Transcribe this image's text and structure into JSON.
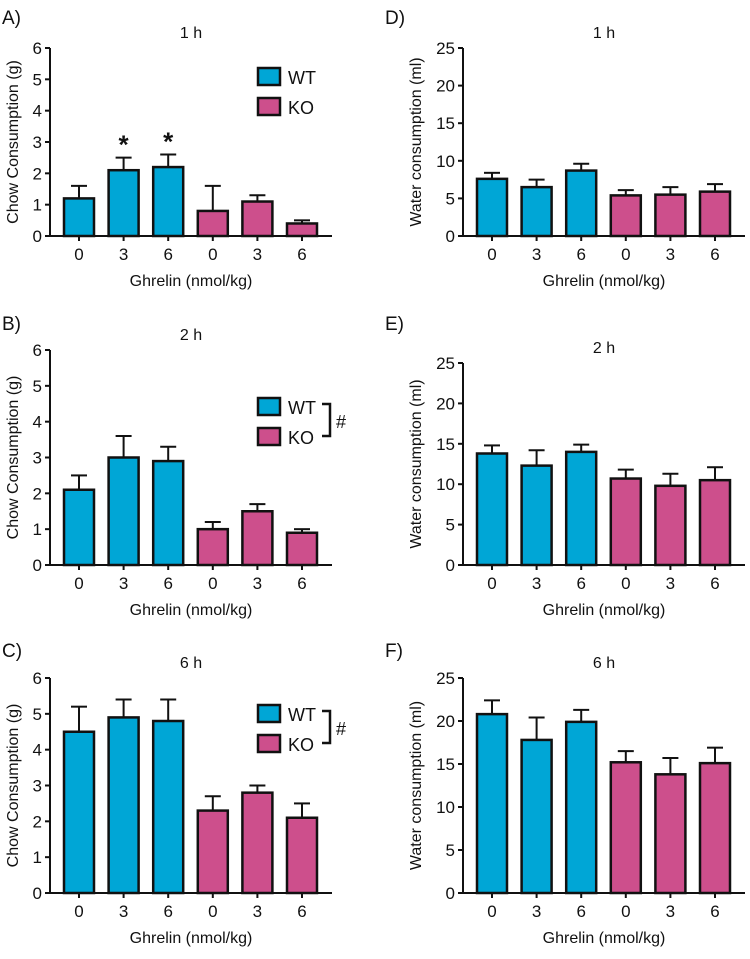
{
  "colors": {
    "WT": "#00a6d6",
    "KO": "#cd4f8c",
    "axis": "#111111"
  },
  "chart_data": [
    {
      "id": "A",
      "type": "bar",
      "panel_label": "A)",
      "title": "1 h",
      "ylabel": "Chow Consumption (g)",
      "xlabel": "Ghrelin (nmol/kg)",
      "ylim": [
        0,
        6
      ],
      "yticks": [
        "0",
        "1",
        "2",
        "3",
        "4",
        "5",
        "6"
      ],
      "categories": [
        "0",
        "3",
        "6",
        "0",
        "3",
        "6"
      ],
      "groups": [
        "WT",
        "WT",
        "WT",
        "KO",
        "KO",
        "KO"
      ],
      "values": [
        1.2,
        2.1,
        2.2,
        0.8,
        1.1,
        0.4
      ],
      "errors": [
        0.4,
        0.4,
        0.4,
        0.8,
        0.2,
        0.1
      ],
      "annotations": [
        "",
        "*",
        "*",
        "",
        "",
        ""
      ],
      "legend": {
        "entries": [
          "WT",
          "KO"
        ],
        "placement": "top-right",
        "bracket_mark": ""
      }
    },
    {
      "id": "B",
      "type": "bar",
      "panel_label": "B)",
      "title": "2 h",
      "ylabel": "Chow Consumption (g)",
      "xlabel": "Ghrelin (nmol/kg)",
      "ylim": [
        0,
        6
      ],
      "yticks": [
        "0",
        "1",
        "2",
        "3",
        "4",
        "5",
        "6"
      ],
      "categories": [
        "0",
        "3",
        "6",
        "0",
        "3",
        "6"
      ],
      "groups": [
        "WT",
        "WT",
        "WT",
        "KO",
        "KO",
        "KO"
      ],
      "values": [
        2.1,
        3.0,
        2.9,
        1.0,
        1.5,
        0.9
      ],
      "errors": [
        0.4,
        0.6,
        0.4,
        0.2,
        0.2,
        0.1
      ],
      "annotations": [
        "",
        "",
        "",
        "",
        "",
        ""
      ],
      "legend": {
        "entries": [
          "WT",
          "KO"
        ],
        "placement": "top-right",
        "bracket_mark": "#"
      }
    },
    {
      "id": "C",
      "type": "bar",
      "panel_label": "C)",
      "title": "6 h",
      "ylabel": "Chow Consumption (g)",
      "xlabel": "Ghrelin (nmol/kg)",
      "ylim": [
        0,
        6
      ],
      "yticks": [
        "0",
        "1",
        "2",
        "3",
        "4",
        "5",
        "6"
      ],
      "categories": [
        "0",
        "3",
        "6",
        "0",
        "3",
        "6"
      ],
      "groups": [
        "WT",
        "WT",
        "WT",
        "KO",
        "KO",
        "KO"
      ],
      "values": [
        4.5,
        4.9,
        4.8,
        2.3,
        2.8,
        2.1
      ],
      "errors": [
        0.7,
        0.5,
        0.6,
        0.4,
        0.2,
        0.4
      ],
      "annotations": [
        "",
        "",
        "",
        "",
        "",
        ""
      ],
      "legend": {
        "entries": [
          "WT",
          "KO"
        ],
        "placement": "top-right",
        "bracket_mark": "#"
      }
    },
    {
      "id": "D",
      "type": "bar",
      "panel_label": "D)",
      "title": "1 h",
      "ylabel": "Water consumption (ml)",
      "xlabel": "Ghrelin (nmol/kg)",
      "ylim": [
        0,
        25
      ],
      "yticks": [
        "0",
        "5",
        "10",
        "15",
        "20",
        "25"
      ],
      "categories": [
        "0",
        "3",
        "6",
        "0",
        "3",
        "6"
      ],
      "groups": [
        "WT",
        "WT",
        "WT",
        "KO",
        "KO",
        "KO"
      ],
      "values": [
        7.6,
        6.5,
        8.7,
        5.4,
        5.5,
        5.9
      ],
      "errors": [
        0.8,
        1.0,
        0.9,
        0.7,
        1.0,
        1.0
      ],
      "annotations": [
        "",
        "",
        "",
        "",
        "",
        ""
      ]
    },
    {
      "id": "E",
      "type": "bar",
      "panel_label": "E)",
      "title": "2 h",
      "ylabel": "Water consumption (ml)",
      "xlabel": "Ghrelin (nmol/kg)",
      "ylim": [
        0,
        25
      ],
      "yticks": [
        "0",
        "5",
        "10",
        "15",
        "20",
        "25"
      ],
      "categories": [
        "0",
        "3",
        "6",
        "0",
        "3",
        "6"
      ],
      "groups": [
        "WT",
        "WT",
        "WT",
        "KO",
        "KO",
        "KO"
      ],
      "values": [
        13.8,
        12.3,
        14.0,
        10.7,
        9.8,
        10.5
      ],
      "errors": [
        1.0,
        1.9,
        0.9,
        1.1,
        1.5,
        1.6
      ],
      "annotations": [
        "",
        "",
        "",
        "",
        "",
        ""
      ]
    },
    {
      "id": "F",
      "type": "bar",
      "panel_label": "F)",
      "title": "6 h",
      "ylabel": "Water consumption (ml)",
      "xlabel": "Ghrelin (nmol/kg)",
      "ylim": [
        0,
        25
      ],
      "yticks": [
        "0",
        "5",
        "10",
        "15",
        "20",
        "25"
      ],
      "categories": [
        "0",
        "3",
        "6",
        "0",
        "3",
        "6"
      ],
      "groups": [
        "WT",
        "WT",
        "WT",
        "KO",
        "KO",
        "KO"
      ],
      "values": [
        20.8,
        17.8,
        19.9,
        15.2,
        13.8,
        15.1
      ],
      "errors": [
        1.6,
        2.6,
        1.4,
        1.3,
        1.9,
        1.8
      ],
      "annotations": [
        "",
        "",
        "",
        "",
        "",
        ""
      ]
    }
  ]
}
